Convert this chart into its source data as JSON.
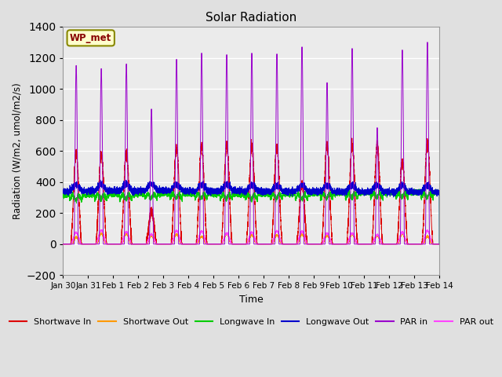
{
  "title": "Solar Radiation",
  "xlabel": "Time",
  "ylabel": "Radiation (W/m2, umol/m2/s)",
  "ylim": [
    -200,
    1400
  ],
  "yticks": [
    -200,
    0,
    200,
    400,
    600,
    800,
    1000,
    1200,
    1400
  ],
  "x_tick_labels": [
    "Jan 30",
    "Jan 31",
    "Feb 1",
    "Feb 2",
    "Feb 3",
    "Feb 4",
    "Feb 5",
    "Feb 6",
    "Feb 7",
    "Feb 8",
    "Feb 9",
    "Feb 10",
    "Feb 11",
    "Feb 12",
    "Feb 13",
    "Feb 14"
  ],
  "x_tick_positions": [
    0,
    1,
    2,
    3,
    4,
    5,
    6,
    7,
    8,
    9,
    10,
    11,
    12,
    13,
    14,
    15
  ],
  "bg_color": "#e0e0e0",
  "plot_bg_color": "#ebebeb",
  "grid_color": "white",
  "annotation_label": "WP_met",
  "annotation_bg": "#ffffcc",
  "annotation_border": "#888800",
  "annotation_text_color": "#880000",
  "sw_in_color": "#dd0000",
  "sw_out_color": "#ff9900",
  "lw_in_color": "#00cc00",
  "lw_out_color": "#0000cc",
  "par_in_color": "#9900cc",
  "par_out_color": "#ff44ff",
  "n_days": 15,
  "points_per_day": 480,
  "seed": 12345
}
